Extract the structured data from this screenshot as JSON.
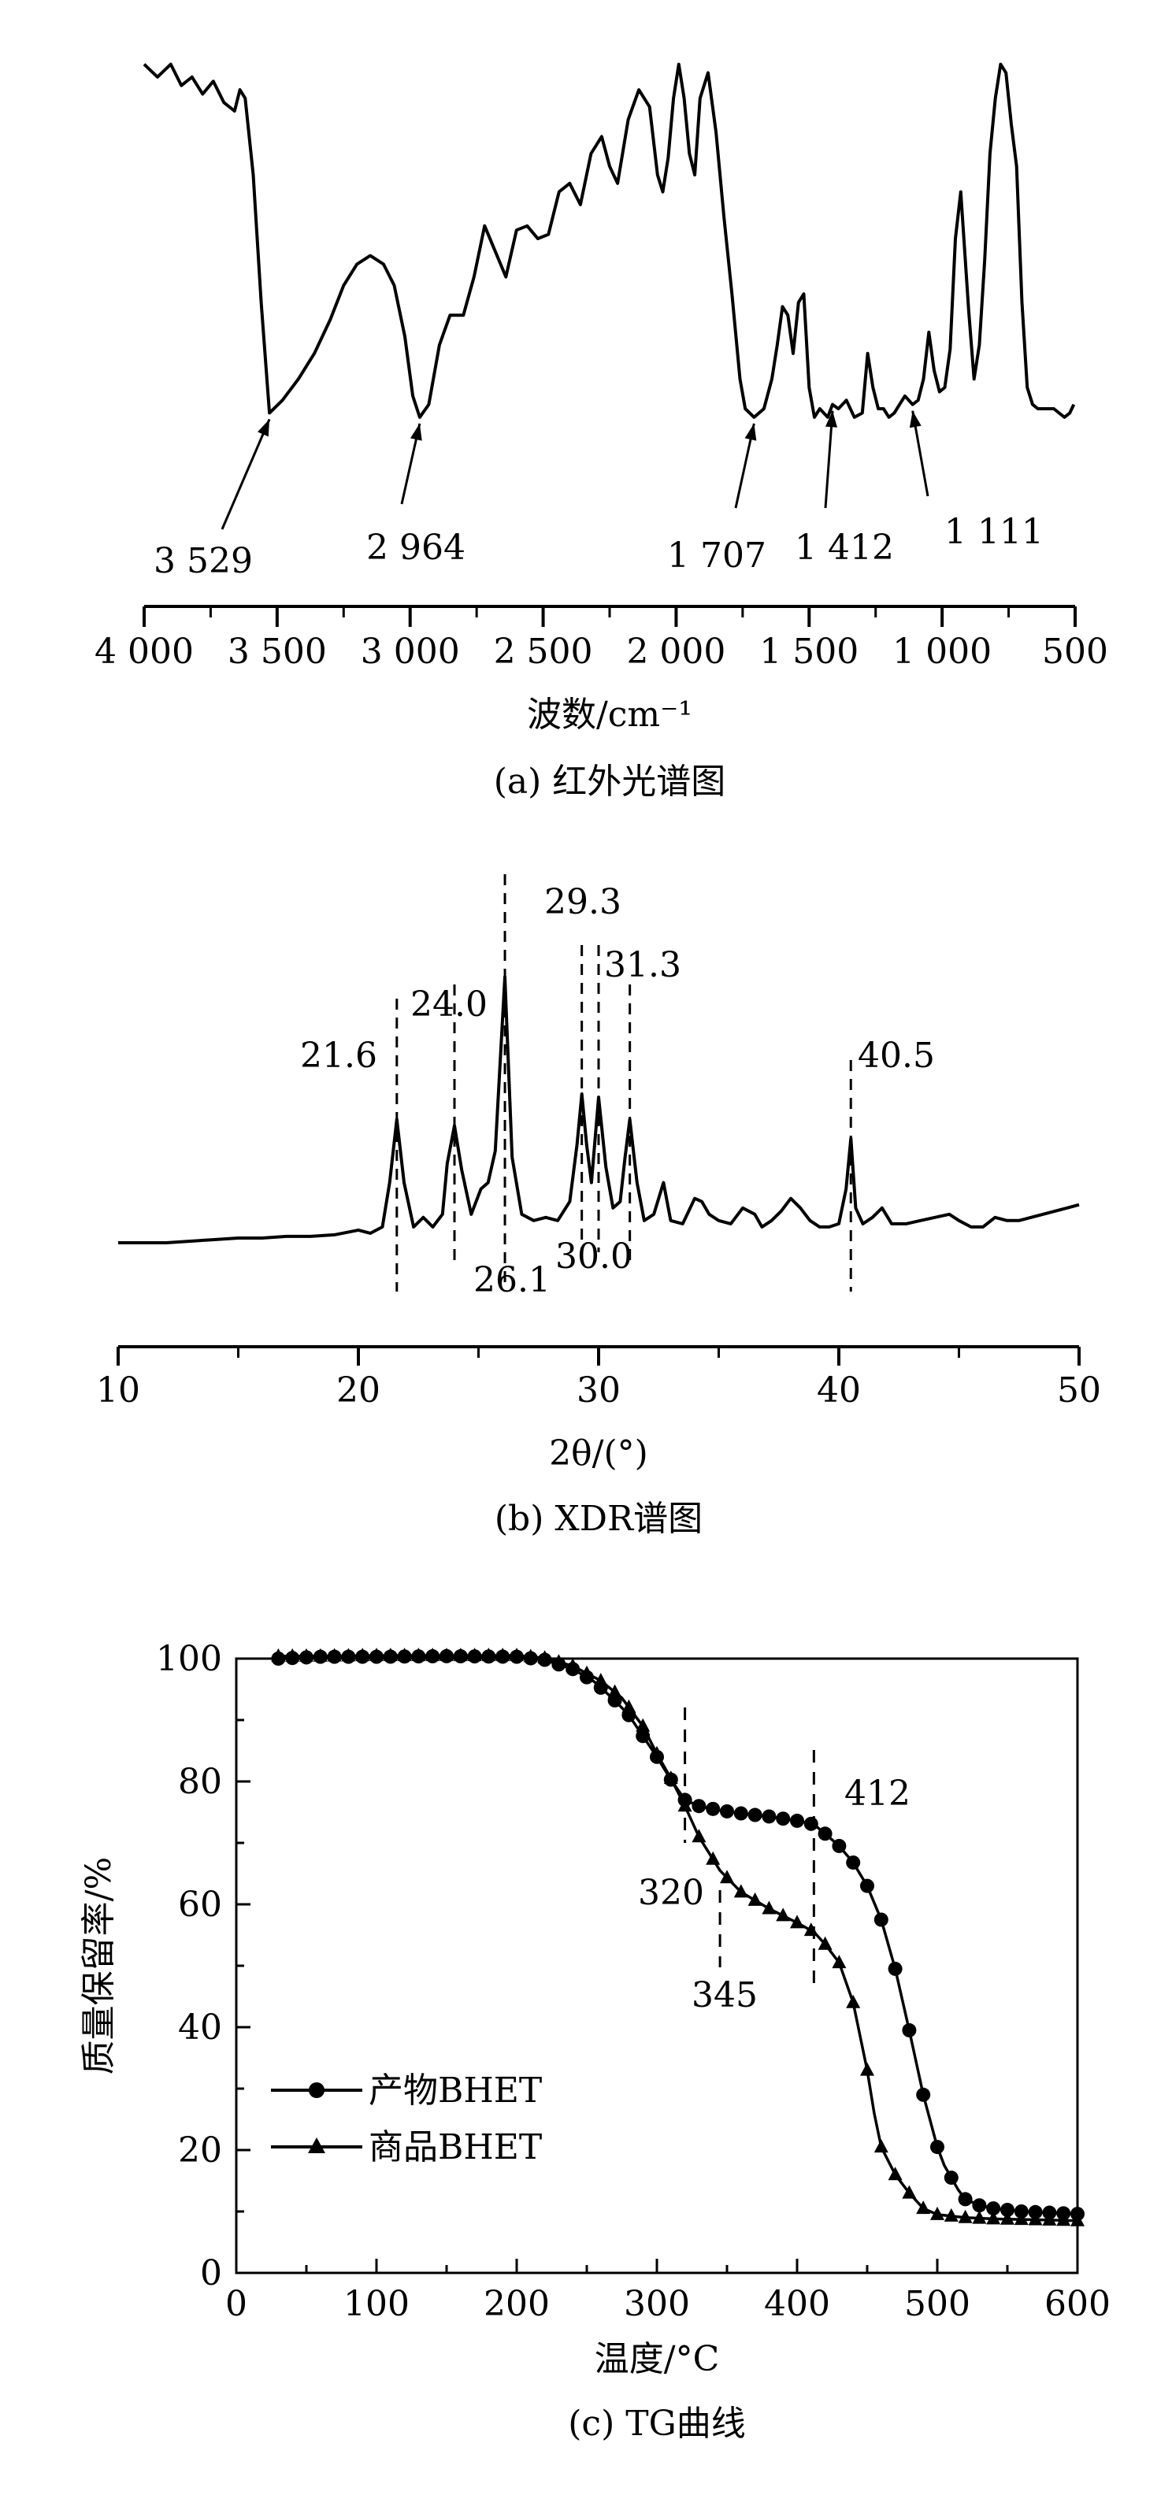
{
  "panels": {
    "a": {
      "caption": "(a) 红外光谱图",
      "xlabel": "波数/cm⁻¹"
    },
    "b": {
      "caption": "(b) XDR谱图",
      "xlabel": "2θ/(°)"
    },
    "c": {
      "caption": "(c) TG曲线",
      "xlabel": "温度/°C",
      "ylabel": "质量保留率/%"
    }
  },
  "chart_data": [
    {
      "type": "line",
      "title": "(a) 红外光谱图",
      "xlabel": "波数/cm⁻¹",
      "ylabel": "",
      "xlim": [
        4000,
        500
      ],
      "x_reversed": true,
      "xticks": [
        4000,
        3500,
        3000,
        2500,
        2000,
        1500,
        1000,
        500
      ],
      "xtick_labels": [
        "4 000",
        "3 500",
        "3 000",
        "2 500",
        "2 000",
        "1 500",
        "1 000",
        "500"
      ],
      "y_axis_shown": false,
      "ylim": [
        0,
        100
      ],
      "series": [
        {
          "x": [
            4000,
            3950,
            3900,
            3860,
            3820,
            3780,
            3740,
            3700,
            3660,
            3640,
            3620,
            3590,
            3560,
            3529,
            3480,
            3420,
            3360,
            3300,
            3250,
            3200,
            3150,
            3100,
            3060,
            3020,
            2990,
            2964,
            2930,
            2890,
            2850,
            2800,
            2760,
            2720,
            2680,
            2640,
            2600,
            2560,
            2520,
            2480,
            2440,
            2400,
            2360,
            2320,
            2280,
            2250,
            2220,
            2180,
            2140,
            2100,
            2070,
            2050,
            2030,
            2010,
            1990,
            1970,
            1950,
            1930,
            1910,
            1880,
            1850,
            1820,
            1790,
            1760,
            1740,
            1707,
            1670,
            1640,
            1620,
            1600,
            1580,
            1560,
            1540,
            1520,
            1500,
            1480,
            1460,
            1430,
            1412,
            1390,
            1360,
            1330,
            1300,
            1280,
            1260,
            1240,
            1220,
            1200,
            1180,
            1160,
            1140,
            1111,
            1090,
            1070,
            1050,
            1030,
            1010,
            990,
            970,
            950,
            930,
            900,
            880,
            860,
            840,
            820,
            800,
            780,
            760,
            740,
            720,
            700,
            680,
            660,
            640,
            620,
            600,
            580,
            560,
            540,
            520,
            505
          ],
          "y": [
            96,
            93,
            96,
            91,
            93,
            89,
            92,
            87,
            85,
            90,
            88,
            70,
            40,
            14,
            17,
            22,
            28,
            36,
            44,
            49,
            51,
            49,
            44,
            32,
            18,
            13,
            16,
            30,
            37,
            37,
            46,
            58,
            52,
            46,
            57,
            58,
            55,
            56,
            66,
            68,
            63,
            75,
            79,
            72,
            68,
            83,
            90,
            86,
            70,
            66,
            74,
            88,
            96,
            88,
            75,
            70,
            88,
            94,
            80,
            60,
            42,
            22,
            15,
            13,
            15,
            22,
            30,
            39,
            37,
            28,
            40,
            42,
            20,
            13,
            15,
            13,
            16,
            15,
            17,
            13,
            14,
            28,
            20,
            15,
            15,
            13,
            14,
            16,
            18,
            16,
            17,
            22,
            33,
            24,
            19,
            20,
            29,
            55,
            66,
            38,
            22,
            30,
            50,
            75,
            88,
            96,
            94,
            82,
            72,
            40,
            20,
            16,
            15,
            15,
            15,
            15,
            14,
            13,
            14,
            16
          ]
        }
      ],
      "annotations": [
        {
          "label": "3 529",
          "x": 3529
        },
        {
          "label": "2 964",
          "x": 2964
        },
        {
          "label": "1 707",
          "x": 1707
        },
        {
          "label": "1 412",
          "x": 1412
        },
        {
          "label": "1 111",
          "x": 1111
        }
      ]
    },
    {
      "type": "line",
      "title": "(b) XDR谱图",
      "xlabel": "2θ/(°)",
      "ylabel": "",
      "xlim": [
        10,
        50
      ],
      "xticks": [
        10,
        20,
        30,
        40,
        50
      ],
      "xtick_labels": [
        "10",
        "20",
        "30",
        "40",
        "50"
      ],
      "y_axis_shown": false,
      "ylim": [
        0,
        100
      ],
      "series": [
        {
          "x": [
            10,
            11,
            12,
            13,
            14,
            15,
            16,
            17,
            18,
            19,
            20,
            20.5,
            21,
            21.3,
            21.6,
            21.9,
            22.3,
            22.7,
            23.1,
            23.5,
            23.7,
            24.0,
            24.3,
            24.7,
            25.1,
            25.4,
            25.7,
            26.1,
            26.4,
            26.8,
            27.3,
            27.8,
            28.3,
            28.8,
            29.1,
            29.3,
            29.5,
            29.7,
            30.0,
            30.3,
            30.6,
            30.9,
            31.1,
            31.3,
            31.6,
            31.9,
            32.3,
            32.7,
            33.0,
            33.5,
            34.0,
            34.3,
            34.6,
            35.0,
            35.5,
            36.0,
            36.5,
            36.8,
            37.2,
            37.6,
            38.0,
            38.4,
            38.8,
            39.2,
            39.6,
            40.0,
            40.3,
            40.5,
            40.7,
            41.0,
            41.4,
            41.8,
            42.2,
            42.8,
            43.4,
            44.0,
            44.6,
            45.0,
            45.5,
            46.0,
            46.5,
            47.0,
            47.5,
            48.0,
            48.5,
            49.0,
            49.5,
            50.0
          ],
          "y": [
            1,
            1,
            1,
            1.5,
            2,
            2.5,
            2.5,
            3,
            3,
            3.5,
            5,
            4,
            6,
            20,
            40,
            20,
            6,
            9,
            6,
            10,
            26,
            38,
            24,
            10,
            18,
            20,
            30,
            85,
            28,
            10,
            8,
            9,
            8,
            14,
            32,
            48,
            32,
            20,
            47,
            25,
            12,
            14,
            28,
            40,
            20,
            8,
            10,
            20,
            8,
            7,
            15,
            14,
            10,
            8,
            7,
            12,
            10,
            6,
            8,
            11,
            15,
            12,
            8,
            6,
            6,
            7,
            18,
            34,
            12,
            7,
            9,
            12,
            7,
            7,
            8,
            9,
            10,
            8,
            6,
            6,
            9,
            8,
            8,
            9,
            10,
            11,
            12,
            13
          ]
        }
      ],
      "annotations": [
        {
          "label": "21.6",
          "x": 21.6
        },
        {
          "label": "24.0",
          "x": 24.0
        },
        {
          "label": "26.1",
          "x": 26.1
        },
        {
          "label": "29.3",
          "x": 29.3
        },
        {
          "label": "30.0",
          "x": 30.0
        },
        {
          "label": "31.3",
          "x": 31.3
        },
        {
          "label": "40.5",
          "x": 40.5
        }
      ]
    },
    {
      "type": "line",
      "title": "(c) TG曲线",
      "xlabel": "温度/°C",
      "ylabel": "质量保留率/%",
      "xlim": [
        0,
        600
      ],
      "ylim": [
        0,
        100
      ],
      "xticks": [
        0,
        100,
        200,
        300,
        400,
        500,
        600
      ],
      "yticks": [
        0,
        20,
        40,
        60,
        80,
        100
      ],
      "legend": "lower-left",
      "series": [
        {
          "name": "产物BHET",
          "marker": "circle",
          "x": [
            30,
            60,
            100,
            150,
            200,
            220,
            240,
            255,
            270,
            280,
            290,
            300,
            310,
            320,
            330,
            345,
            360,
            380,
            400,
            412,
            420,
            430,
            440,
            450,
            460,
            470,
            480,
            490,
            500,
            505,
            510,
            515,
            520,
            530,
            540,
            560,
            580,
            600
          ],
          "y": [
            100,
            100.3,
            100.3,
            100.4,
            100.3,
            99.8,
            98.3,
            96.3,
            93.2,
            90.8,
            87.4,
            84,
            80.3,
            77,
            76,
            75.3,
            74.8,
            74.3,
            73.6,
            73,
            71.5,
            69.5,
            66.8,
            63,
            57.5,
            49.5,
            39.5,
            29,
            20.5,
            17.5,
            15.5,
            13.5,
            12,
            11,
            10.5,
            10,
            9.8,
            9.6
          ]
        },
        {
          "name": "商品BHET",
          "marker": "triangle",
          "x": [
            30,
            60,
            100,
            150,
            200,
            220,
            240,
            260,
            275,
            290,
            300,
            310,
            320,
            330,
            345,
            360,
            380,
            400,
            412,
            420,
            430,
            440,
            450,
            455,
            460,
            470,
            480,
            490,
            500,
            520,
            540,
            560,
            580,
            600
          ],
          "y": [
            100.4,
            100.4,
            100.5,
            100.5,
            100.5,
            100.1,
            98.8,
            96.4,
            93.6,
            89,
            84.5,
            80.5,
            76,
            71,
            65.5,
            62,
            59.3,
            57,
            55.5,
            53.5,
            50.5,
            44,
            33,
            26,
            20.5,
            16,
            13,
            10.5,
            9.5,
            9,
            8.8,
            8.7,
            8.6,
            8.5
          ]
        }
      ],
      "annotations": [
        {
          "label": "320",
          "x": 320
        },
        {
          "label": "345",
          "x": 345
        },
        {
          "label": "412",
          "x": 412
        }
      ]
    }
  ]
}
